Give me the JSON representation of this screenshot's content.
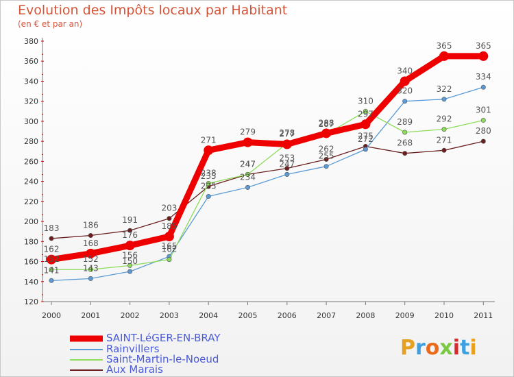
{
  "chart_data": {
    "type": "line",
    "title": "Evolution des Impôts locaux par Habitant",
    "subtitle": "(en € et par an)",
    "xlabel": "",
    "ylabel": "",
    "categories": [
      "2000",
      "2001",
      "2002",
      "2003",
      "2004",
      "2005",
      "2006",
      "2007",
      "2008",
      "2009",
      "2010",
      "2011"
    ],
    "yticks": [
      120,
      140,
      160,
      180,
      200,
      220,
      240,
      260,
      280,
      300,
      320,
      340,
      360,
      380
    ],
    "ylim": [
      120,
      380
    ],
    "grid": false,
    "legend_position": "bottom",
    "series": [
      {
        "name": "SAINT-LéGER-EN-BRAY",
        "color": "#ee0000",
        "values": [
          162,
          168,
          176,
          185,
          271,
          279,
          277,
          288,
          297,
          340,
          365,
          365
        ]
      },
      {
        "name": "Rainvillers",
        "color": "#5b9bd5",
        "values": [
          141,
          143,
          150,
          165,
          225,
          234,
          247,
          255,
          272,
          320,
          322,
          334
        ]
      },
      {
        "name": "Saint-Martin-le-Noeud",
        "color": "#8ddc5a",
        "values": [
          152,
          152,
          156,
          162,
          238,
          247,
          278,
          287,
          310,
          289,
          292,
          301
        ]
      },
      {
        "name": "Aux Marais",
        "color": "#6b1e1e",
        "values": [
          183,
          186,
          191,
          203,
          235,
          247,
          253,
          262,
          275,
          268,
          271,
          280
        ]
      }
    ]
  },
  "logo": {
    "text": "Proxiti"
  }
}
